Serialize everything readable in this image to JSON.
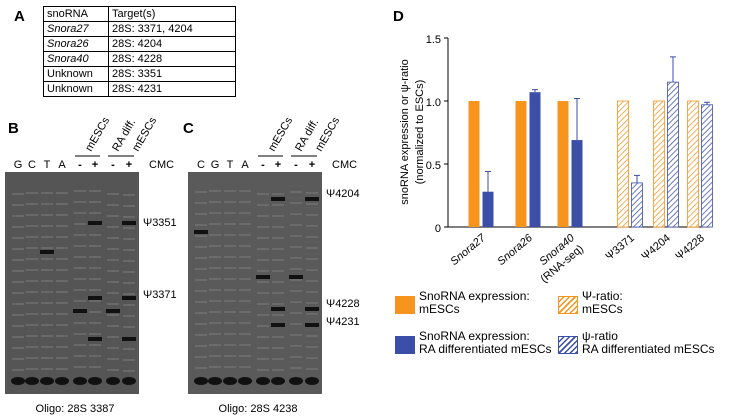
{
  "panels": {
    "a": "A",
    "b": "B",
    "c": "C",
    "d": "D"
  },
  "table": {
    "header": [
      "snoRNA",
      "Target(s)"
    ],
    "rows": [
      [
        "Snora27",
        "28S: 3371, 4204"
      ],
      [
        "Snora26",
        "28S: 4204"
      ],
      [
        "Snora40",
        "28S: 4228"
      ],
      [
        "Unknown",
        "28S: 3351"
      ],
      [
        "Unknown",
        "28S: 4231"
      ]
    ]
  },
  "gel_b": {
    "lanes": [
      "G",
      "C",
      "T",
      "A"
    ],
    "signs": [
      "-",
      "+",
      "-",
      "+"
    ],
    "groups": [
      "mESCs",
      "RA diff.",
      "mESCs"
    ],
    "reagent": "CMC",
    "sites": [
      "Ψ3351",
      "Ψ3371"
    ],
    "caption": "Oligo: 28S 3387"
  },
  "gel_c": {
    "lanes": [
      "C",
      "G",
      "T",
      "A"
    ],
    "signs": [
      "-",
      "+",
      "-",
      "+"
    ],
    "groups": [
      "mESCs",
      "RA diff.",
      "mESCs"
    ],
    "reagent": "CMC",
    "sites": [
      "Ψ4204",
      "Ψ4228",
      "Ψ4231"
    ],
    "caption": "Oligo: 28S 4238"
  },
  "chart_data": {
    "type": "bar",
    "y_label": [
      "snoRNA expression or ψ-ratio",
      "(normalized to ESCs)"
    ],
    "categories": [
      "Snora27",
      "Snora26",
      [
        "Snora40",
        "(RNA-seq)"
      ],
      "Ψ3371",
      "Ψ4204",
      "Ψ4228"
    ],
    "ylim": [
      0,
      1.5
    ],
    "yticks": [
      0,
      0.5,
      {
        "value": 1,
        "label": "1.0"
      },
      1.5
    ],
    "series": [
      {
        "name": "SnoRNA expression:\nmESCs",
        "color": "#f7941d",
        "hatch": false,
        "values": [
          1,
          1,
          1,
          null,
          null,
          null
        ]
      },
      {
        "name": "SnoRNA expression:\nRA differentiated mESCs",
        "color": "#3c4fa8",
        "hatch": false,
        "values": [
          0.28,
          1.07,
          0.69,
          null,
          null,
          null
        ],
        "errors": [
          0.16,
          0.02,
          0.33,
          null,
          null,
          null
        ]
      },
      {
        "name": "Ψ-ratio:\nmESCs",
        "color": "#f7941d",
        "hatch": true,
        "values": [
          null,
          null,
          null,
          1,
          1,
          1
        ]
      },
      {
        "name": "ψ-ratio\nRA differentiated mESCs",
        "color": "#3c4fa8",
        "hatch": true,
        "values": [
          null,
          null,
          null,
          0.35,
          1.15,
          0.97
        ],
        "errors": [
          null,
          null,
          null,
          0.06,
          0.2,
          0.02
        ]
      }
    ]
  }
}
